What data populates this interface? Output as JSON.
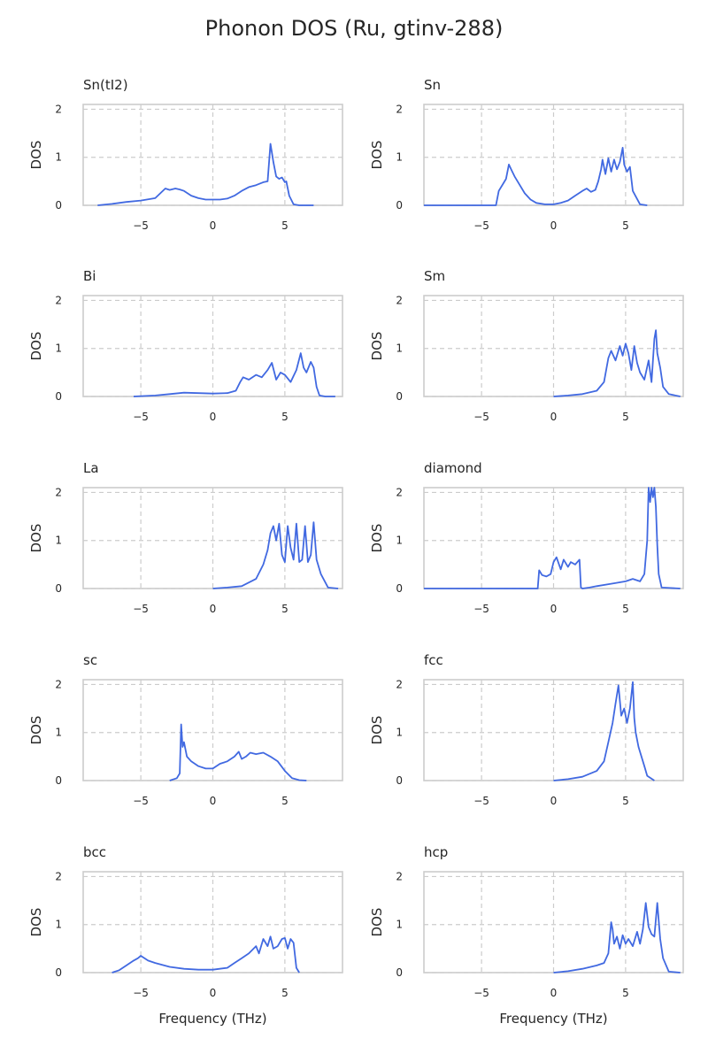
{
  "figure": {
    "title": "Phonon DOS (Ru, gtinv-288)"
  },
  "style": {
    "line_color": "#4169e1",
    "grid_color": "#cccccc",
    "frame_color": "#cccccc"
  },
  "chart_data": [
    {
      "type": "line",
      "title": "Sn(tI2)",
      "xlabel": "",
      "ylabel": "DOS",
      "xlim": [
        -9,
        9
      ],
      "ylim": [
        0,
        2.1
      ],
      "xticks": [
        -5,
        0,
        5
      ],
      "yticks": [
        0,
        1,
        2
      ],
      "grid": true,
      "series": [
        {
          "x": [
            -8,
            -7,
            -6,
            -5,
            -4,
            -3.3,
            -3,
            -2.6,
            -2.3,
            -2,
            -1.5,
            -1,
            -0.5,
            0,
            0.5,
            1,
            1.5,
            2,
            2.5,
            3,
            3.5,
            3.8,
            4,
            4.1,
            4.2,
            4.4,
            4.6,
            4.8,
            5,
            5.1,
            5.3,
            5.6,
            6,
            7
          ],
          "y": [
            0,
            0.03,
            0.07,
            0.1,
            0.15,
            0.35,
            0.32,
            0.35,
            0.33,
            0.3,
            0.2,
            0.15,
            0.12,
            0.12,
            0.12,
            0.14,
            0.2,
            0.3,
            0.38,
            0.42,
            0.48,
            0.5,
            1.28,
            1.1,
            0.9,
            0.6,
            0.55,
            0.58,
            0.48,
            0.5,
            0.2,
            0.02,
            0,
            0
          ]
        }
      ]
    },
    {
      "type": "line",
      "title": "Sn",
      "xlabel": "",
      "ylabel": "DOS",
      "xlim": [
        -9,
        9
      ],
      "ylim": [
        0,
        2.1
      ],
      "xticks": [
        -5,
        0,
        5
      ],
      "yticks": [
        0,
        1,
        2
      ],
      "grid": true,
      "series": [
        {
          "x": [
            -9,
            -4,
            -3.8,
            -3.5,
            -3.3,
            -3.1,
            -2.9,
            -2.7,
            -2.4,
            -2,
            -1.6,
            -1.2,
            -0.6,
            0,
            0.5,
            1,
            1.5,
            2,
            2.3,
            2.6,
            2.9,
            3.1,
            3.3,
            3.4,
            3.6,
            3.8,
            4,
            4.2,
            4.4,
            4.6,
            4.8,
            4.9,
            5.1,
            5.3,
            5.5,
            6,
            6.5
          ],
          "y": [
            0,
            0,
            0.3,
            0.45,
            0.55,
            0.85,
            0.72,
            0.6,
            0.45,
            0.25,
            0.12,
            0.05,
            0.02,
            0.02,
            0.05,
            0.1,
            0.2,
            0.3,
            0.35,
            0.28,
            0.32,
            0.5,
            0.75,
            0.95,
            0.65,
            0.98,
            0.7,
            0.95,
            0.75,
            0.9,
            1.2,
            0.85,
            0.7,
            0.8,
            0.3,
            0.02,
            0
          ]
        }
      ]
    },
    {
      "type": "line",
      "title": "Bi",
      "xlabel": "",
      "ylabel": "DOS",
      "xlim": [
        -9,
        9
      ],
      "ylim": [
        0,
        2.1
      ],
      "xticks": [
        -5,
        0,
        5
      ],
      "yticks": [
        0,
        1,
        2
      ],
      "grid": true,
      "series": [
        {
          "x": [
            -5.5,
            -4,
            -3,
            -2,
            -1,
            0,
            1,
            1.6,
            1.9,
            2.1,
            2.5,
            3,
            3.4,
            3.8,
            4.1,
            4.4,
            4.7,
            5,
            5.4,
            5.8,
            6.1,
            6.3,
            6.5,
            6.8,
            7,
            7.2,
            7.4,
            7.8,
            8.5
          ],
          "y": [
            0,
            0.02,
            0.05,
            0.08,
            0.07,
            0.06,
            0.07,
            0.12,
            0.3,
            0.4,
            0.35,
            0.45,
            0.4,
            0.55,
            0.7,
            0.35,
            0.5,
            0.45,
            0.3,
            0.55,
            0.9,
            0.6,
            0.5,
            0.72,
            0.6,
            0.2,
            0.02,
            0,
            0
          ]
        }
      ]
    },
    {
      "type": "line",
      "title": "Sm",
      "xlabel": "",
      "ylabel": "DOS",
      "xlim": [
        -9,
        9
      ],
      "ylim": [
        0,
        2.1
      ],
      "xticks": [
        -5,
        0,
        5
      ],
      "yticks": [
        0,
        1,
        2
      ],
      "grid": true,
      "series": [
        {
          "x": [
            0,
            1,
            2,
            3,
            3.5,
            3.8,
            4,
            4.3,
            4.6,
            4.8,
            5,
            5.2,
            5.4,
            5.6,
            5.8,
            6,
            6.3,
            6.6,
            6.8,
            7,
            7.1,
            7.2,
            7.4,
            7.6,
            8,
            8.8
          ],
          "y": [
            0,
            0.02,
            0.05,
            0.12,
            0.3,
            0.8,
            0.95,
            0.75,
            1.05,
            0.85,
            1.1,
            0.9,
            0.55,
            1.05,
            0.7,
            0.5,
            0.35,
            0.75,
            0.3,
            1.2,
            1.38,
            0.9,
            0.6,
            0.2,
            0.05,
            0
          ]
        }
      ]
    },
    {
      "type": "line",
      "title": "La",
      "xlabel": "",
      "ylabel": "DOS",
      "xlim": [
        -9,
        9
      ],
      "ylim": [
        0,
        2.1
      ],
      "xticks": [
        -5,
        0,
        5
      ],
      "yticks": [
        0,
        1,
        2
      ],
      "grid": true,
      "series": [
        {
          "x": [
            0,
            1,
            2,
            3,
            3.5,
            3.8,
            4,
            4.2,
            4.4,
            4.6,
            4.8,
            5,
            5.2,
            5.4,
            5.6,
            5.8,
            6,
            6.2,
            6.4,
            6.6,
            6.8,
            7,
            7.2,
            7.5,
            8,
            8.7
          ],
          "y": [
            0,
            0.02,
            0.05,
            0.2,
            0.5,
            0.8,
            1.15,
            1.3,
            1.0,
            1.35,
            0.7,
            0.55,
            1.3,
            0.85,
            0.6,
            1.35,
            0.55,
            0.6,
            1.3,
            0.55,
            0.7,
            1.38,
            0.6,
            0.3,
            0.02,
            0
          ]
        }
      ]
    },
    {
      "type": "line",
      "title": "diamond",
      "xlabel": "",
      "ylabel": "DOS",
      "xlim": [
        -9,
        9
      ],
      "ylim": [
        0,
        2.1
      ],
      "xticks": [
        -5,
        0,
        5
      ],
      "yticks": [
        0,
        1,
        2
      ],
      "grid": true,
      "series": [
        {
          "x": [
            -9,
            -1.1,
            -1,
            -0.8,
            -0.5,
            -0.2,
            0,
            0.2,
            0.5,
            0.7,
            1,
            1.2,
            1.5,
            1.8,
            1.9,
            2,
            2.5,
            3,
            4,
            5,
            5.5,
            6,
            6.3,
            6.5,
            6.6,
            6.7,
            6.8,
            6.9,
            7,
            7.1,
            7.2,
            7.3,
            7.5,
            8.8
          ],
          "y": [
            0,
            0,
            0.38,
            0.28,
            0.25,
            0.3,
            0.55,
            0.65,
            0.4,
            0.6,
            0.45,
            0.55,
            0.5,
            0.6,
            0.02,
            0,
            0.02,
            0.05,
            0.1,
            0.15,
            0.2,
            0.15,
            0.3,
            1.0,
            2.1,
            1.8,
            2.1,
            1.9,
            2.1,
            1.7,
            0.9,
            0.3,
            0.02,
            0
          ]
        }
      ]
    },
    {
      "type": "line",
      "title": "sc",
      "xlabel": "",
      "ylabel": "DOS",
      "xlim": [
        -9,
        9
      ],
      "ylim": [
        0,
        2.1
      ],
      "xticks": [
        -5,
        0,
        5
      ],
      "yticks": [
        0,
        1,
        2
      ],
      "grid": true,
      "series": [
        {
          "x": [
            -3,
            -2.5,
            -2.3,
            -2.2,
            -2.1,
            -2,
            -1.8,
            -1.5,
            -1,
            -0.5,
            0,
            0.5,
            1,
            1.5,
            1.8,
            2,
            2.3,
            2.6,
            3,
            3.5,
            4,
            4.5,
            5,
            5.5,
            6,
            6.5
          ],
          "y": [
            0,
            0.05,
            0.15,
            1.17,
            0.7,
            0.8,
            0.5,
            0.4,
            0.3,
            0.25,
            0.25,
            0.35,
            0.4,
            0.5,
            0.6,
            0.45,
            0.5,
            0.58,
            0.55,
            0.58,
            0.5,
            0.4,
            0.2,
            0.05,
            0.01,
            0
          ]
        }
      ]
    },
    {
      "type": "line",
      "title": "fcc",
      "xlabel": "",
      "ylabel": "DOS",
      "xlim": [
        -9,
        9
      ],
      "ylim": [
        0,
        2.1
      ],
      "xticks": [
        -5,
        0,
        5
      ],
      "yticks": [
        0,
        1,
        2
      ],
      "grid": true,
      "series": [
        {
          "x": [
            0,
            1,
            2,
            3,
            3.5,
            3.8,
            4.1,
            4.3,
            4.5,
            4.7,
            4.9,
            5.1,
            5.3,
            5.5,
            5.6,
            5.7,
            5.9,
            6.1,
            6.3,
            6.5,
            7
          ],
          "y": [
            0,
            0.03,
            0.08,
            0.2,
            0.4,
            0.8,
            1.2,
            1.6,
            1.98,
            1.35,
            1.5,
            1.2,
            1.5,
            2.05,
            1.3,
            1.0,
            0.7,
            0.5,
            0.3,
            0.1,
            0
          ]
        }
      ]
    },
    {
      "type": "line",
      "title": "bcc",
      "xlabel": "Frequency (THz)",
      "ylabel": "DOS",
      "xlim": [
        -9,
        9
      ],
      "ylim": [
        0,
        2.1
      ],
      "xticks": [
        -5,
        0,
        5
      ],
      "yticks": [
        0,
        1,
        2
      ],
      "grid": true,
      "series": [
        {
          "x": [
            -7,
            -6.5,
            -6,
            -5.5,
            -5.2,
            -5,
            -4.5,
            -4,
            -3,
            -2,
            -1,
            0,
            1,
            1.5,
            2,
            2.5,
            3,
            3.2,
            3.5,
            3.8,
            4,
            4.2,
            4.5,
            4.8,
            5,
            5.2,
            5.4,
            5.6,
            5.8,
            6
          ],
          "y": [
            0,
            0.05,
            0.15,
            0.25,
            0.3,
            0.35,
            0.25,
            0.2,
            0.12,
            0.08,
            0.06,
            0.06,
            0.1,
            0.2,
            0.3,
            0.4,
            0.55,
            0.4,
            0.7,
            0.55,
            0.75,
            0.5,
            0.55,
            0.7,
            0.72,
            0.5,
            0.7,
            0.62,
            0.1,
            0
          ]
        }
      ]
    },
    {
      "type": "line",
      "title": "hcp",
      "xlabel": "Frequency (THz)",
      "ylabel": "DOS",
      "xlim": [
        -9,
        9
      ],
      "ylim": [
        0,
        2.1
      ],
      "xticks": [
        -5,
        0,
        5
      ],
      "yticks": [
        0,
        1,
        2
      ],
      "grid": true,
      "series": [
        {
          "x": [
            0,
            1,
            2,
            3,
            3.5,
            3.8,
            4,
            4.1,
            4.2,
            4.4,
            4.6,
            4.8,
            5,
            5.2,
            5.5,
            5.8,
            6,
            6.2,
            6.4,
            6.6,
            6.8,
            7,
            7.2,
            7.4,
            7.6,
            8,
            8.8
          ],
          "y": [
            0,
            0.03,
            0.08,
            0.15,
            0.2,
            0.4,
            1.05,
            0.9,
            0.6,
            0.75,
            0.5,
            0.78,
            0.6,
            0.7,
            0.55,
            0.85,
            0.6,
            0.9,
            1.45,
            0.95,
            0.8,
            0.75,
            1.45,
            0.7,
            0.3,
            0.02,
            0
          ]
        }
      ]
    }
  ]
}
